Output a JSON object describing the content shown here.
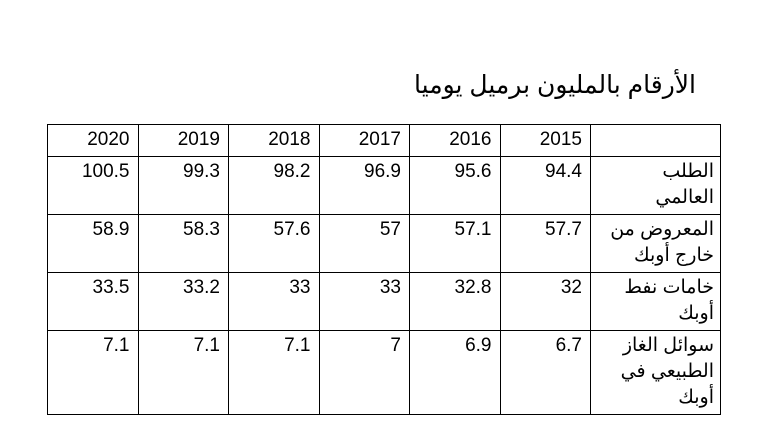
{
  "title": "الأرقام بالمليون برميل يوميا",
  "table": {
    "columns": [
      "2015",
      "2016",
      "2017",
      "2018",
      "2019",
      "2020"
    ],
    "rows": [
      {
        "label": "الطلب العالمي",
        "values": [
          94.4,
          95.6,
          96.9,
          98.2,
          99.3,
          100.5
        ]
      },
      {
        "label": "المعروض من خارج أوبك",
        "values": [
          57.7,
          57.1,
          57,
          57.6,
          58.3,
          58.9
        ]
      },
      {
        "label": "خامات نفط أوبك",
        "values": [
          32,
          32.8,
          33,
          33,
          33.2,
          33.5
        ]
      },
      {
        "label": "سوائل الغاز الطبيعي في أوبك",
        "values": [
          6.7,
          6.9,
          7,
          7.1,
          7.1,
          7.1
        ]
      }
    ]
  }
}
